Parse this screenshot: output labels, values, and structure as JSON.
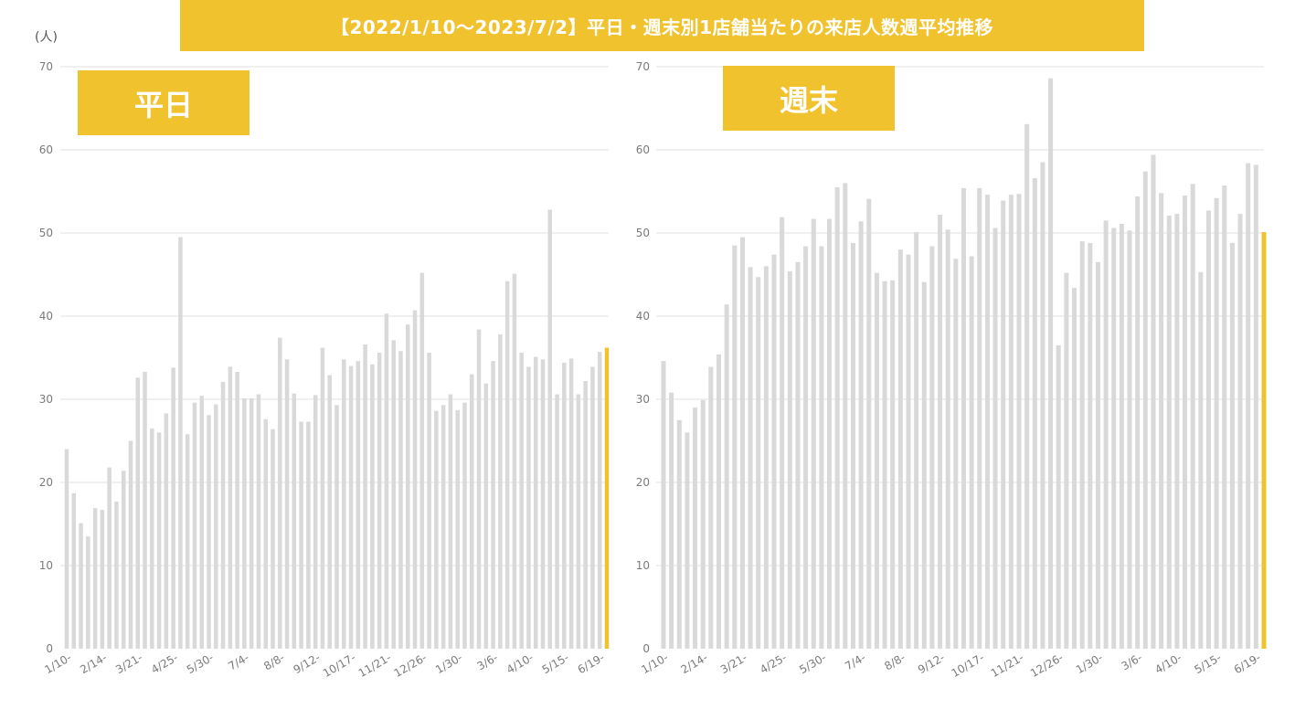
{
  "title": "【2022/1/10〜2023/7/2】平日・週末別1店舗当たりの来店人数週平均推移",
  "unit": "(人)",
  "colors": {
    "bar": "#d9d9d9",
    "highlight": "#F0C22E",
    "badge": "#F0C22E"
  },
  "chart_data": [
    {
      "type": "bar",
      "panel_label": "平日",
      "ylim": [
        0,
        70
      ],
      "yticks": [
        0,
        10,
        20,
        30,
        40,
        50,
        60,
        70
      ],
      "grid": true,
      "xtick_labels": [
        "1/10-",
        "2/14-",
        "3/21-",
        "4/25-",
        "5/30-",
        "7/4-",
        "8/8-",
        "9/12-",
        "10/17-",
        "11/21-",
        "12/26-",
        "1/30-",
        "3/6-",
        "4/10-",
        "5/15-",
        "6/19-"
      ],
      "xtick_every": 5,
      "highlight_last": true,
      "values": [
        24.0,
        18.7,
        15.1,
        13.5,
        16.9,
        16.7,
        21.8,
        17.7,
        21.4,
        25.0,
        32.6,
        33.3,
        26.5,
        26.0,
        28.3,
        33.8,
        49.5,
        25.8,
        29.6,
        30.4,
        28.1,
        29.4,
        32.1,
        33.9,
        33.3,
        30.1,
        30.1,
        30.6,
        27.6,
        26.4,
        37.4,
        34.8,
        30.7,
        27.3,
        27.3,
        30.5,
        36.2,
        32.9,
        29.3,
        34.8,
        34.0,
        34.6,
        36.6,
        34.2,
        35.6,
        40.3,
        37.1,
        35.8,
        39.0,
        40.7,
        45.2,
        35.6,
        28.6,
        29.3,
        30.6,
        28.7,
        29.6,
        33.0,
        38.4,
        31.9,
        34.6,
        37.8,
        44.2,
        45.1,
        35.6,
        33.9,
        35.1,
        34.8,
        52.8,
        30.6,
        34.4,
        34.9,
        30.6,
        32.2,
        33.9,
        35.7,
        36.2
      ]
    },
    {
      "type": "bar",
      "panel_label": "週末",
      "ylim": [
        0,
        70
      ],
      "yticks": [
        0,
        10,
        20,
        30,
        40,
        50,
        60,
        70
      ],
      "grid": true,
      "xtick_labels": [
        "1/10-",
        "2/14-",
        "3/21-",
        "4/25-",
        "5/30-",
        "7/4-",
        "8/8-",
        "9/12-",
        "10/17-",
        "11/21-",
        "12/26-",
        "1/30-",
        "3/6-",
        "4/10-",
        "5/15-",
        "6/19-"
      ],
      "xtick_every": 5,
      "highlight_last": true,
      "values": [
        34.6,
        30.8,
        27.5,
        26.0,
        29.0,
        29.9,
        33.9,
        35.4,
        41.4,
        48.5,
        49.5,
        45.9,
        44.7,
        46.0,
        47.4,
        51.9,
        45.4,
        46.5,
        48.4,
        51.7,
        48.4,
        51.7,
        55.5,
        56.0,
        48.8,
        51.4,
        54.1,
        45.2,
        44.2,
        44.3,
        48.0,
        47.4,
        50.1,
        44.1,
        48.4,
        52.2,
        50.4,
        46.9,
        55.4,
        47.2,
        55.4,
        54.6,
        50.6,
        53.9,
        54.6,
        54.7,
        63.1,
        56.6,
        58.5,
        68.6,
        36.5,
        45.2,
        43.4,
        49.0,
        48.8,
        46.5,
        51.5,
        50.6,
        51.1,
        50.3,
        54.4,
        57.4,
        59.4,
        54.8,
        52.1,
        52.3,
        54.5,
        55.9,
        45.3,
        52.7,
        54.2,
        55.7,
        48.8,
        52.3,
        58.4,
        58.2,
        50.1
      ]
    }
  ]
}
